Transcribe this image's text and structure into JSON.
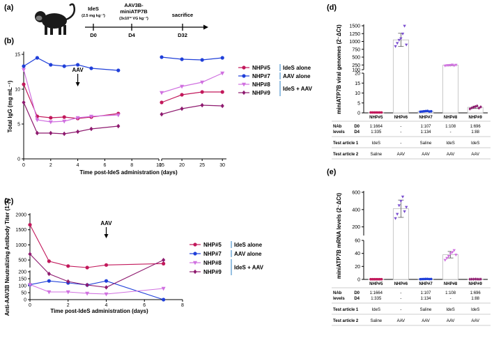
{
  "panels": {
    "a": "(a)",
    "b": "(b)",
    "c": "(c)",
    "d": "(d)",
    "e": "(e)"
  },
  "timeline": {
    "events": [
      {
        "title": "IdeS",
        "sub": "(2.5 mg kg⁻¹)",
        "day": "D0"
      },
      {
        "title": "AAV3B-\nminiATP7B",
        "sub": "(3x10¹² VG kg⁻¹)",
        "day": "D4"
      },
      {
        "title": "sacrifice",
        "sub": "",
        "day": "D32"
      }
    ]
  },
  "legend_groups": [
    {
      "label": "IdeS alone",
      "members": [
        "NHP#5"
      ]
    },
    {
      "label": "AAV alone",
      "members": [
        "NHP#7"
      ]
    },
    {
      "label": "IdeS + AAV",
      "members": [
        "NHP#8",
        "NHP#9"
      ]
    }
  ],
  "colors": {
    "NHP#5": "#c2185b",
    "NHP#6": "#7b4fcf",
    "NHP#7": "#1f3fd9",
    "NHP#8": "#d070e0",
    "NHP#9": "#8e1a6f",
    "bracket": "#6aa6d6"
  },
  "table": {
    "nab_label": "NAb\nlevels",
    "nab_rows": [
      "D0",
      "D4"
    ],
    "test1_label": "Test article 1",
    "test2_label": "Test article 2",
    "nab_values": [
      "1:1664\n1:335",
      "-\n-",
      "1:107\n1:134",
      "1:108\n-",
      "1:696\n1:88"
    ],
    "test1": [
      "IdeS",
      "-",
      "Saline",
      "IdeS",
      "IdeS"
    ],
    "test2": [
      "Saline",
      "AAV",
      "AAV",
      "AAV",
      "AAV"
    ]
  },
  "chart_data": [
    {
      "id": "b",
      "type": "line",
      "title": "",
      "xlabel": "Time post-IdeS administration (days)",
      "ylabel": "Total IgG (mg mL⁻¹)",
      "annotation": "AAV",
      "annotation_x": 4,
      "x_break": [
        10,
        15
      ],
      "xlim": [
        0,
        31
      ],
      "ylim": [
        0,
        15
      ],
      "xticks": [
        0,
        2,
        4,
        6,
        8,
        10,
        15,
        20,
        25,
        30
      ],
      "yticks": [
        0,
        5,
        10,
        15
      ],
      "series": [
        {
          "name": "NHP#5",
          "x": [
            0,
            1,
            2,
            3,
            4,
            5,
            7,
            15,
            20,
            25,
            30
          ],
          "y": [
            10.7,
            6.1,
            5.9,
            6.0,
            5.8,
            6.0,
            6.5,
            8.1,
            9.2,
            9.6,
            9.6
          ]
        },
        {
          "name": "NHP#7",
          "x": [
            0,
            1,
            2,
            3,
            4,
            5,
            7,
            15,
            20,
            25,
            30
          ],
          "y": [
            13.3,
            14.5,
            13.5,
            13.3,
            13.5,
            13.0,
            12.7,
            14.6,
            14.3,
            14.2,
            14.5
          ]
        },
        {
          "name": "NHP#8",
          "x": [
            0,
            1,
            2,
            3,
            4,
            5,
            7,
            15,
            20,
            25,
            30
          ],
          "y": [
            12.8,
            5.6,
            5.3,
            5.4,
            5.9,
            6.1,
            6.3,
            9.5,
            10.4,
            11.0,
            12.3
          ]
        },
        {
          "name": "NHP#9",
          "x": [
            0,
            1,
            2,
            3,
            4,
            5,
            7,
            15,
            20,
            25,
            30
          ],
          "y": [
            8.1,
            3.7,
            3.7,
            3.6,
            3.9,
            4.3,
            4.7,
            6.4,
            7.2,
            7.7,
            7.6
          ]
        }
      ]
    },
    {
      "id": "c",
      "type": "line",
      "title": "",
      "xlabel": "Time post-IdeS administration (days)",
      "ylabel": "Anti-AAV3B Neutralizing Antibody Titer (1:X)",
      "annotation": "AAV",
      "annotation_x": 4,
      "xlim": [
        0,
        8
      ],
      "ylim": [
        0,
        2000
      ],
      "y_break": [
        210,
        250
      ],
      "xticks": [
        0,
        2,
        4,
        6,
        8
      ],
      "yticks": [
        0,
        50,
        100,
        150,
        200,
        500,
        1000,
        1500,
        2000
      ],
      "series": [
        {
          "name": "NHP#5",
          "x": [
            0,
            1,
            2,
            3,
            4,
            7
          ],
          "y": [
            1664,
            460,
            300,
            250,
            335,
            380
          ]
        },
        {
          "name": "NHP#7",
          "x": [
            0,
            1,
            2,
            3,
            4,
            7
          ],
          "y": [
            107,
            134,
            120,
            105,
            134,
            217
          ]
        },
        {
          "name": "NHP#8",
          "x": [
            0,
            1,
            2,
            3,
            4,
            7
          ],
          "y": [
            108,
            55,
            55,
            45,
            40,
            80
          ]
        },
        {
          "name": "NHP#9",
          "x": [
            0,
            1,
            2,
            3,
            4,
            7
          ],
          "y": [
            696,
            185,
            130,
            105,
            88,
            500
          ]
        }
      ]
    },
    {
      "id": "d",
      "type": "bar",
      "ylabel": "miniATP7B viral genomes (2⁻ΔCt)",
      "categories": [
        "NHP#5",
        "NHP#6",
        "NHP#7",
        "NHP#8",
        "NHP#9"
      ],
      "values": [
        0.2,
        1050,
        0.8,
        245,
        2.8
      ],
      "errors": [
        0.05,
        210,
        0.3,
        15,
        0.6
      ],
      "points": [
        [
          0.2,
          0.2,
          0.2,
          0.2,
          0.2,
          0.2,
          0.2
        ],
        [
          850,
          950,
          1050,
          1100,
          1250,
          1500,
          900
        ],
        [
          0.6,
          0.7,
          0.8,
          0.9,
          1.0,
          0.7,
          0.8
        ],
        [
          230,
          240,
          245,
          250,
          260,
          235,
          255
        ],
        [
          2.0,
          2.5,
          2.8,
          3.2,
          3.5,
          2.4,
          3.0
        ]
      ],
      "ylim": [
        0,
        1500
      ],
      "y_break": [
        20,
        100
      ],
      "yticks": [
        0,
        5,
        10,
        15,
        20,
        100,
        250,
        500,
        750,
        1000,
        1250,
        1500
      ]
    },
    {
      "id": "e",
      "type": "bar",
      "ylabel": "miniATP7B mRNA levels (2⁻ΔCt)",
      "categories": [
        "NHP#5",
        "NHP#6",
        "NHP#7",
        "NHP#8",
        "NHP#9"
      ],
      "values": [
        0.3,
        410,
        0.6,
        38,
        0.4
      ],
      "errors": [
        0.1,
        100,
        0.3,
        5,
        0.1
      ],
      "points": [
        [
          0.3,
          0.3,
          0.3,
          0.3,
          0.3,
          0.3,
          0.3
        ],
        [
          300,
          350,
          450,
          500,
          550,
          380,
          430
        ],
        [
          0.4,
          0.5,
          0.6,
          0.7,
          0.8,
          0.5,
          0.6
        ],
        [
          30,
          33,
          36,
          40,
          42,
          45,
          38
        ],
        [
          0.3,
          0.4,
          0.4,
          0.5,
          0.4,
          0.3,
          0.4
        ]
      ],
      "ylim": [
        0,
        600
      ],
      "y_break": [
        60,
        100
      ],
      "yticks": [
        0,
        20,
        40,
        60,
        200,
        400,
        600
      ]
    }
  ]
}
